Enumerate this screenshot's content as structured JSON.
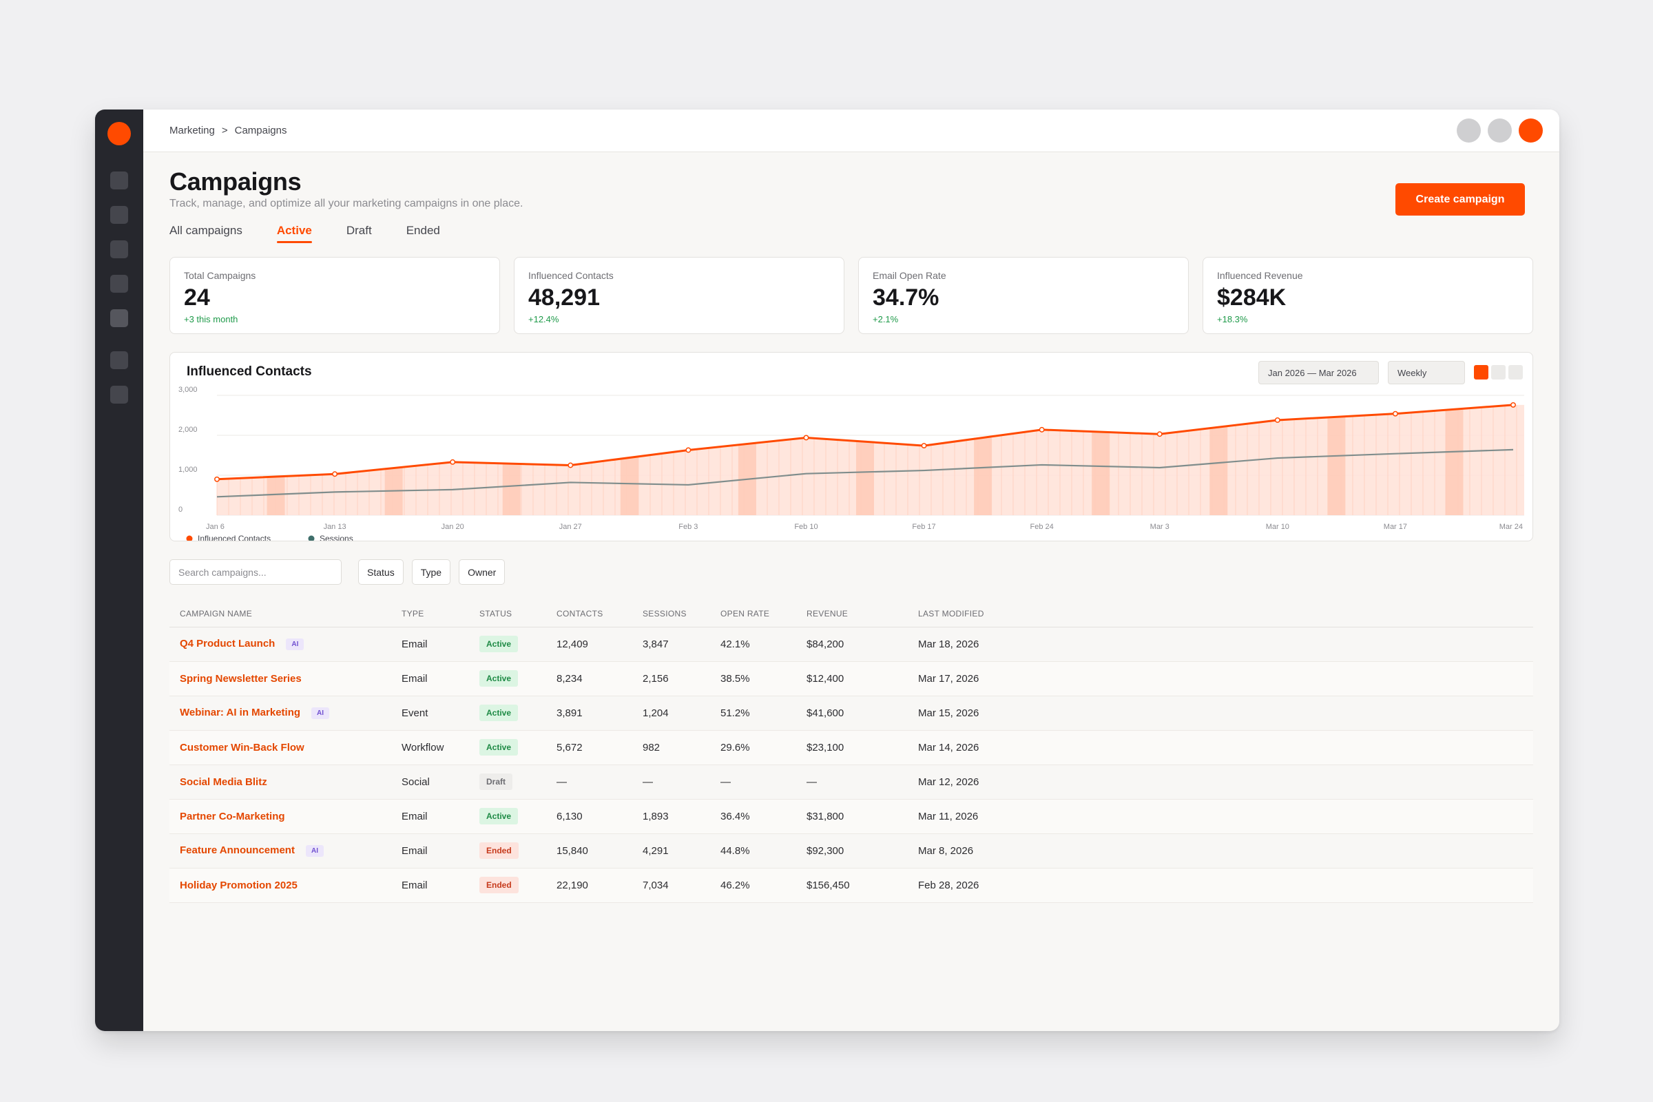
{
  "breadcrumb": {
    "parent": "Marketing",
    "separator": ">",
    "current": "Campaigns"
  },
  "page": {
    "title": "Campaigns",
    "subtitle": "Track, manage, and optimize all your marketing campaigns in one place.",
    "cta_label": "Create campaign"
  },
  "tabs": [
    {
      "label": "All campaigns",
      "active": false
    },
    {
      "label": "Active",
      "active": true
    },
    {
      "label": "Draft",
      "active": false
    },
    {
      "label": "Ended",
      "active": false
    }
  ],
  "stats": [
    {
      "label": "Total Campaigns",
      "value": "24",
      "delta": "+3 this month"
    },
    {
      "label": "Influenced Contacts",
      "value": "48,291",
      "delta": "+12.4%"
    },
    {
      "label": "Email Open Rate",
      "value": "34.7%",
      "delta": "+2.1%"
    },
    {
      "label": "Influenced Revenue",
      "value": "$284K",
      "delta": "+18.3%"
    }
  ],
  "chart_card": {
    "title": "Influenced Contacts",
    "date_range": "Jan 2026 — Mar 2026",
    "interval": "Weekly"
  },
  "chart_data": {
    "type": "line",
    "categories": [
      "Jan 6",
      "Jan 13",
      "Jan 20",
      "Jan 27",
      "Feb 3",
      "Feb 10",
      "Feb 17",
      "Feb 24",
      "Mar 3",
      "Mar 10",
      "Mar 17",
      "Mar 24"
    ],
    "y_ticks": [
      "3,000",
      "2,000",
      "1,000",
      "0"
    ],
    "ylim": [
      0,
      3000
    ],
    "grid": true,
    "legend_position": "bottom-left",
    "series": [
      {
        "name": "Influenced Contacts",
        "color": "#ff4a00",
        "area": true,
        "values": [
          900,
          1030,
          1330,
          1250,
          1630,
          1940,
          1740,
          2140,
          2030,
          2380,
          2540,
          2760
        ]
      },
      {
        "name": "Sessions",
        "color": "#7f8d8c",
        "area": false,
        "values": [
          460,
          580,
          640,
          820,
          760,
          1040,
          1120,
          1260,
          1190,
          1430,
          1540,
          1640
        ]
      }
    ]
  },
  "search": {
    "placeholder": "Search campaigns..."
  },
  "filters": [
    "Status",
    "Type",
    "Owner"
  ],
  "table": {
    "columns": [
      "CAMPAIGN NAME",
      "TYPE",
      "STATUS",
      "CONTACTS",
      "SESSIONS",
      "OPEN RATE",
      "REVENUE",
      "LAST MODIFIED"
    ],
    "rows": [
      {
        "name": "Q4 Product Launch",
        "ai": "AI",
        "type": "Email",
        "status": "Active",
        "contacts": "12,409",
        "sessions": "3,847",
        "open_rate": "42.1%",
        "revenue": "$84,200",
        "modified": "Mar 18, 2026"
      },
      {
        "name": "Spring Newsletter Series",
        "ai": "",
        "type": "Email",
        "status": "Active",
        "contacts": "8,234",
        "sessions": "2,156",
        "open_rate": "38.5%",
        "revenue": "$12,400",
        "modified": "Mar 17, 2026"
      },
      {
        "name": "Webinar: AI in Marketing",
        "ai": "AI",
        "type": "Event",
        "status": "Active",
        "contacts": "3,891",
        "sessions": "1,204",
        "open_rate": "51.2%",
        "revenue": "$41,600",
        "modified": "Mar 15, 2026"
      },
      {
        "name": "Customer Win-Back Flow",
        "ai": "",
        "type": "Workflow",
        "status": "Active",
        "contacts": "5,672",
        "sessions": "982",
        "open_rate": "29.6%",
        "revenue": "$23,100",
        "modified": "Mar 14, 2026"
      },
      {
        "name": "Social Media Blitz",
        "ai": "",
        "type": "Social",
        "status": "Draft",
        "contacts": "—",
        "sessions": "—",
        "open_rate": "—",
        "revenue": "—",
        "modified": "Mar 12, 2026"
      },
      {
        "name": "Partner Co-Marketing",
        "ai": "",
        "type": "Email",
        "status": "Active",
        "contacts": "6,130",
        "sessions": "1,893",
        "open_rate": "36.4%",
        "revenue": "$31,800",
        "modified": "Mar 11, 2026"
      },
      {
        "name": "Feature Announcement",
        "ai": "AI",
        "type": "Email",
        "status": "Ended",
        "contacts": "15,840",
        "sessions": "4,291",
        "open_rate": "44.8%",
        "revenue": "$92,300",
        "modified": "Mar 8, 2026"
      },
      {
        "name": "Holiday Promotion 2025",
        "ai": "",
        "type": "Email",
        "status": "Ended",
        "contacts": "22,190",
        "sessions": "7,034",
        "open_rate": "46.2%",
        "revenue": "$156,450",
        "modified": "Feb 28, 2026"
      }
    ]
  },
  "colors": {
    "accent": "#ff4a00",
    "rail": "#26272d",
    "positive": "#1f9a4a"
  },
  "icons": {
    "rail_logo": "brand-logo-icon",
    "rail_items": "nav-icon"
  }
}
